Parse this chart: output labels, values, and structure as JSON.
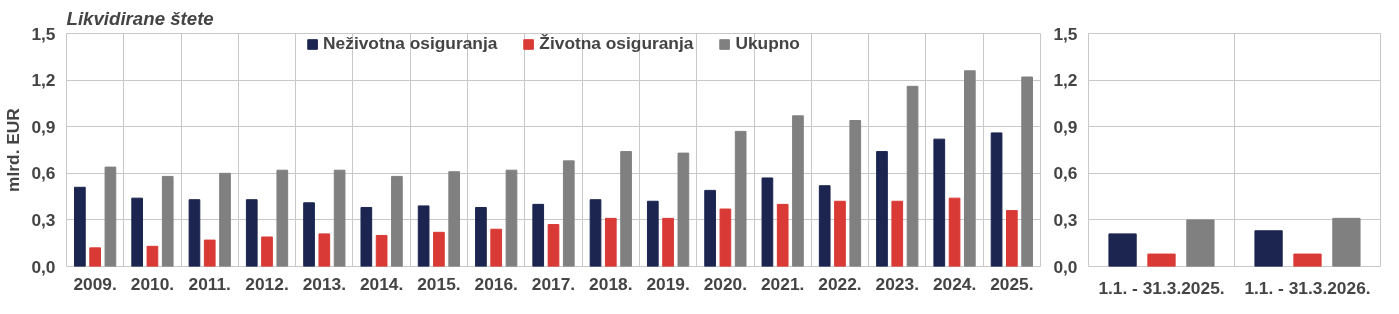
{
  "chart_data": [
    {
      "type": "bar",
      "title": "Likvidirane štete",
      "ylabel": "mlrd. EUR",
      "categories": [
        "2009.",
        "2010.",
        "2011.",
        "2012.",
        "2013.",
        "2014.",
        "2015.",
        "2016.",
        "2017.",
        "2018.",
        "2019.",
        "2020.",
        "2021.",
        "2022.",
        "2023.",
        "2024.",
        "2025."
      ],
      "series": [
        {
          "name": "Neživotna osiguranja",
          "color": "#1b2550",
          "values": [
            0.51,
            0.44,
            0.43,
            0.43,
            0.41,
            0.38,
            0.39,
            0.38,
            0.4,
            0.43,
            0.42,
            0.49,
            0.57,
            0.52,
            0.74,
            0.82,
            0.86
          ]
        },
        {
          "name": "Životna osiguranja",
          "color": "#d93a35",
          "values": [
            0.12,
            0.13,
            0.17,
            0.19,
            0.21,
            0.2,
            0.22,
            0.24,
            0.27,
            0.31,
            0.31,
            0.37,
            0.4,
            0.42,
            0.42,
            0.44,
            0.36
          ]
        },
        {
          "name": "Ukupno",
          "color": "#808080",
          "values": [
            0.64,
            0.58,
            0.6,
            0.62,
            0.62,
            0.58,
            0.61,
            0.62,
            0.68,
            0.74,
            0.73,
            0.87,
            0.97,
            0.94,
            1.16,
            1.26,
            1.22
          ]
        }
      ],
      "ylim": [
        0,
        1.5
      ],
      "yticks": [
        {
          "value": 0,
          "label": "0,0"
        },
        {
          "value": 0.3,
          "label": "0,3"
        },
        {
          "value": 0.6,
          "label": "0,6"
        },
        {
          "value": 0.9,
          "label": "0,9"
        },
        {
          "value": 1.2,
          "label": "1,2"
        },
        {
          "value": 1.5,
          "label": "1,5"
        }
      ],
      "grid": true,
      "legend": "top"
    },
    {
      "type": "bar",
      "categories": [
        "1.1. - 31.3.2025.",
        "1.1. - 31.3.2026."
      ],
      "series": [
        {
          "color": "#1b2550",
          "values": [
            0.21,
            0.23
          ]
        },
        {
          "color": "#d93a35",
          "values": [
            0.08,
            0.08
          ]
        },
        {
          "color": "#808080",
          "values": [
            0.3,
            0.31
          ]
        }
      ],
      "ylim": [
        0,
        1.5
      ],
      "yticks": [
        {
          "value": 0,
          "label": "0,0"
        },
        {
          "value": 0.3,
          "label": "0,3"
        },
        {
          "value": 0.6,
          "label": "0,6"
        },
        {
          "value": 0.9,
          "label": "0,9"
        },
        {
          "value": 1.2,
          "label": "1,2"
        },
        {
          "value": 1.5,
          "label": "1,5"
        }
      ],
      "grid": true
    }
  ]
}
